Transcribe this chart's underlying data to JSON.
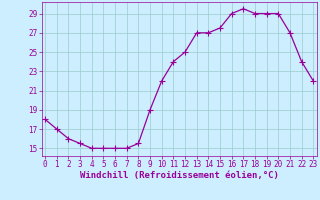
{
  "x": [
    0,
    1,
    2,
    3,
    4,
    5,
    6,
    7,
    8,
    9,
    10,
    11,
    12,
    13,
    14,
    15,
    16,
    17,
    18,
    19,
    20,
    21,
    22,
    23
  ],
  "y": [
    18,
    17,
    16,
    15.5,
    15,
    15,
    15,
    15,
    15.5,
    19,
    22,
    24,
    25,
    27,
    27,
    27.5,
    29,
    29.5,
    29,
    29,
    29,
    27,
    24,
    22
  ],
  "line_color": "#990099",
  "marker": "+",
  "marker_size": 4,
  "marker_linewidth": 0.8,
  "line_width": 0.9,
  "bg_color": "#cceeff",
  "grid_color": "#99cccc",
  "xlabel": "Windchill (Refroidissement éolien,°C)",
  "xlabel_color": "#990099",
  "xlabel_fontsize": 6.5,
  "tick_color": "#990099",
  "tick_fontsize": 5.5,
  "yticks": [
    15,
    17,
    19,
    21,
    23,
    25,
    27,
    29
  ],
  "xticks": [
    0,
    1,
    2,
    3,
    4,
    5,
    6,
    7,
    8,
    9,
    10,
    11,
    12,
    13,
    14,
    15,
    16,
    17,
    18,
    19,
    20,
    21,
    22,
    23
  ],
  "ylim": [
    14.2,
    30.2
  ],
  "xlim": [
    -0.3,
    23.3
  ]
}
